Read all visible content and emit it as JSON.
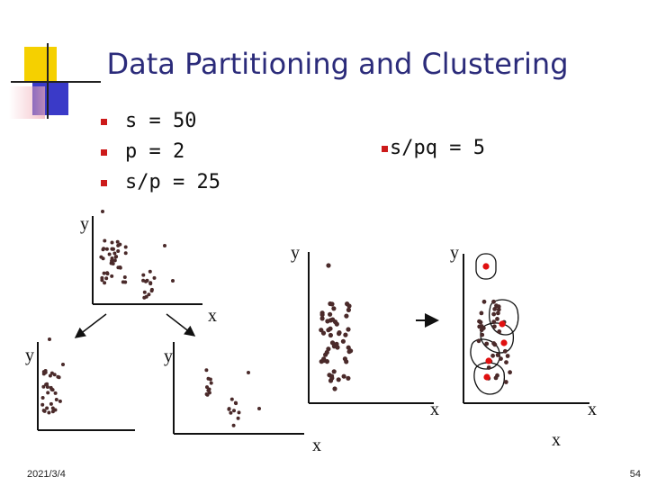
{
  "slide": {
    "title": "Data Partitioning and Clustering",
    "bullets": [
      "s = 50",
      "p = 2",
      "s/p = 25"
    ],
    "right_bullet": "s/pq = 5",
    "footer_date": "2021/3/4",
    "page_number": "54"
  },
  "colors": {
    "title": "#2b2b7a",
    "bullet_marker": "#cc1a1a",
    "deco_yellow": "#f5d000",
    "deco_blue": "#3a3ac8",
    "deco_red": "#e05050",
    "point": "#4a2a2a",
    "center_point": "#e01010"
  },
  "axis_labels": {
    "x": "x",
    "y": "y"
  }
}
